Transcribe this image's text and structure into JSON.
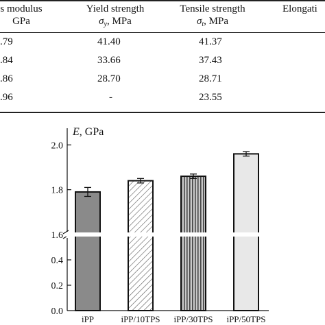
{
  "table": {
    "headers": {
      "modulus": {
        "line1": "s modulus",
        "line2": "GPa"
      },
      "yield": {
        "line1": "Yield strength",
        "sym": "σ",
        "sub": "y",
        "unit": ", MPa"
      },
      "tensile": {
        "line1": "Tensile strength",
        "sym": "σ",
        "sub": "t",
        "unit": ", MPa"
      },
      "elong": {
        "line1": "Elongati"
      }
    },
    "rows": [
      {
        "modulus": ".79",
        "yield": "41.40",
        "tensile": "41.37"
      },
      {
        "modulus": ".84",
        "yield": "33.66",
        "tensile": "37.43"
      },
      {
        "modulus": ".86",
        "yield": "28.70",
        "tensile": "28.71"
      },
      {
        "modulus": ".96",
        "yield": "-",
        "tensile": "23.55"
      }
    ]
  },
  "chart_data": {
    "type": "bar",
    "title": "",
    "ylabel_sym": "E",
    "ylabel_unit": ", GPa",
    "categories": [
      "iPP",
      "iPP/10TPS",
      "iPP/30TPS",
      "iPP/50TPS"
    ],
    "values": [
      1.79,
      1.84,
      1.86,
      1.96
    ],
    "errors": [
      0.02,
      0.01,
      0.01,
      0.01
    ],
    "fills": [
      "solid-dark-gray",
      "diagonal-hatch",
      "vertical-stripes",
      "solid-light-gray"
    ],
    "y_axis_broken": true,
    "y_lower_range": [
      0,
      0.6
    ],
    "y_upper_range": [
      1.6,
      2.05
    ],
    "yticks_lower": [
      "0.0",
      "0.2",
      "0.4"
    ],
    "yticks_upper": [
      "1.6",
      "1.8",
      "2.0"
    ],
    "grid": false,
    "colors": {
      "bar_dark": "#8a8a8a",
      "bar_light": "#e8e8e8",
      "axis": "#111111"
    }
  }
}
